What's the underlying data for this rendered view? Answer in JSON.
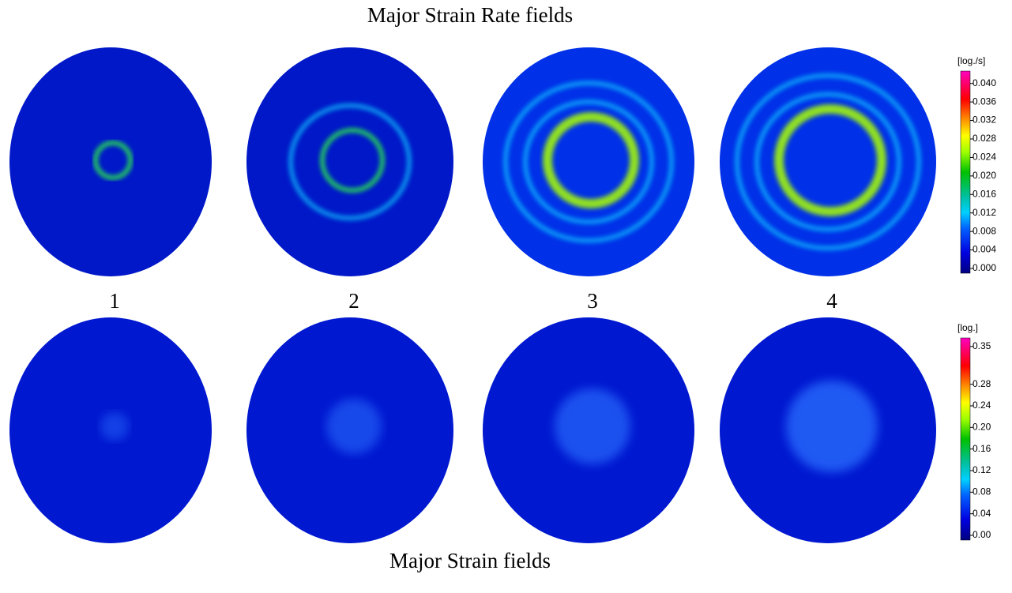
{
  "figure": {
    "top_title": "Major Strain Rate fields",
    "bottom_title": "Major Strain fields",
    "panel_labels": [
      "1",
      "2",
      "3",
      "4"
    ],
    "colorbars": [
      {
        "unit": "[log./s]",
        "ticks": [
          "0.040",
          "0.036",
          "0.032",
          "0.028",
          "0.024",
          "0.020",
          "0.016",
          "0.012",
          "0.008",
          "0.004",
          "0.000"
        ]
      },
      {
        "unit": "[log.]",
        "ticks": [
          "0.35",
          "0.28",
          "0.24",
          "0.20",
          "0.16",
          "0.12",
          "0.08",
          "0.04",
          "0.00"
        ]
      }
    ]
  }
}
